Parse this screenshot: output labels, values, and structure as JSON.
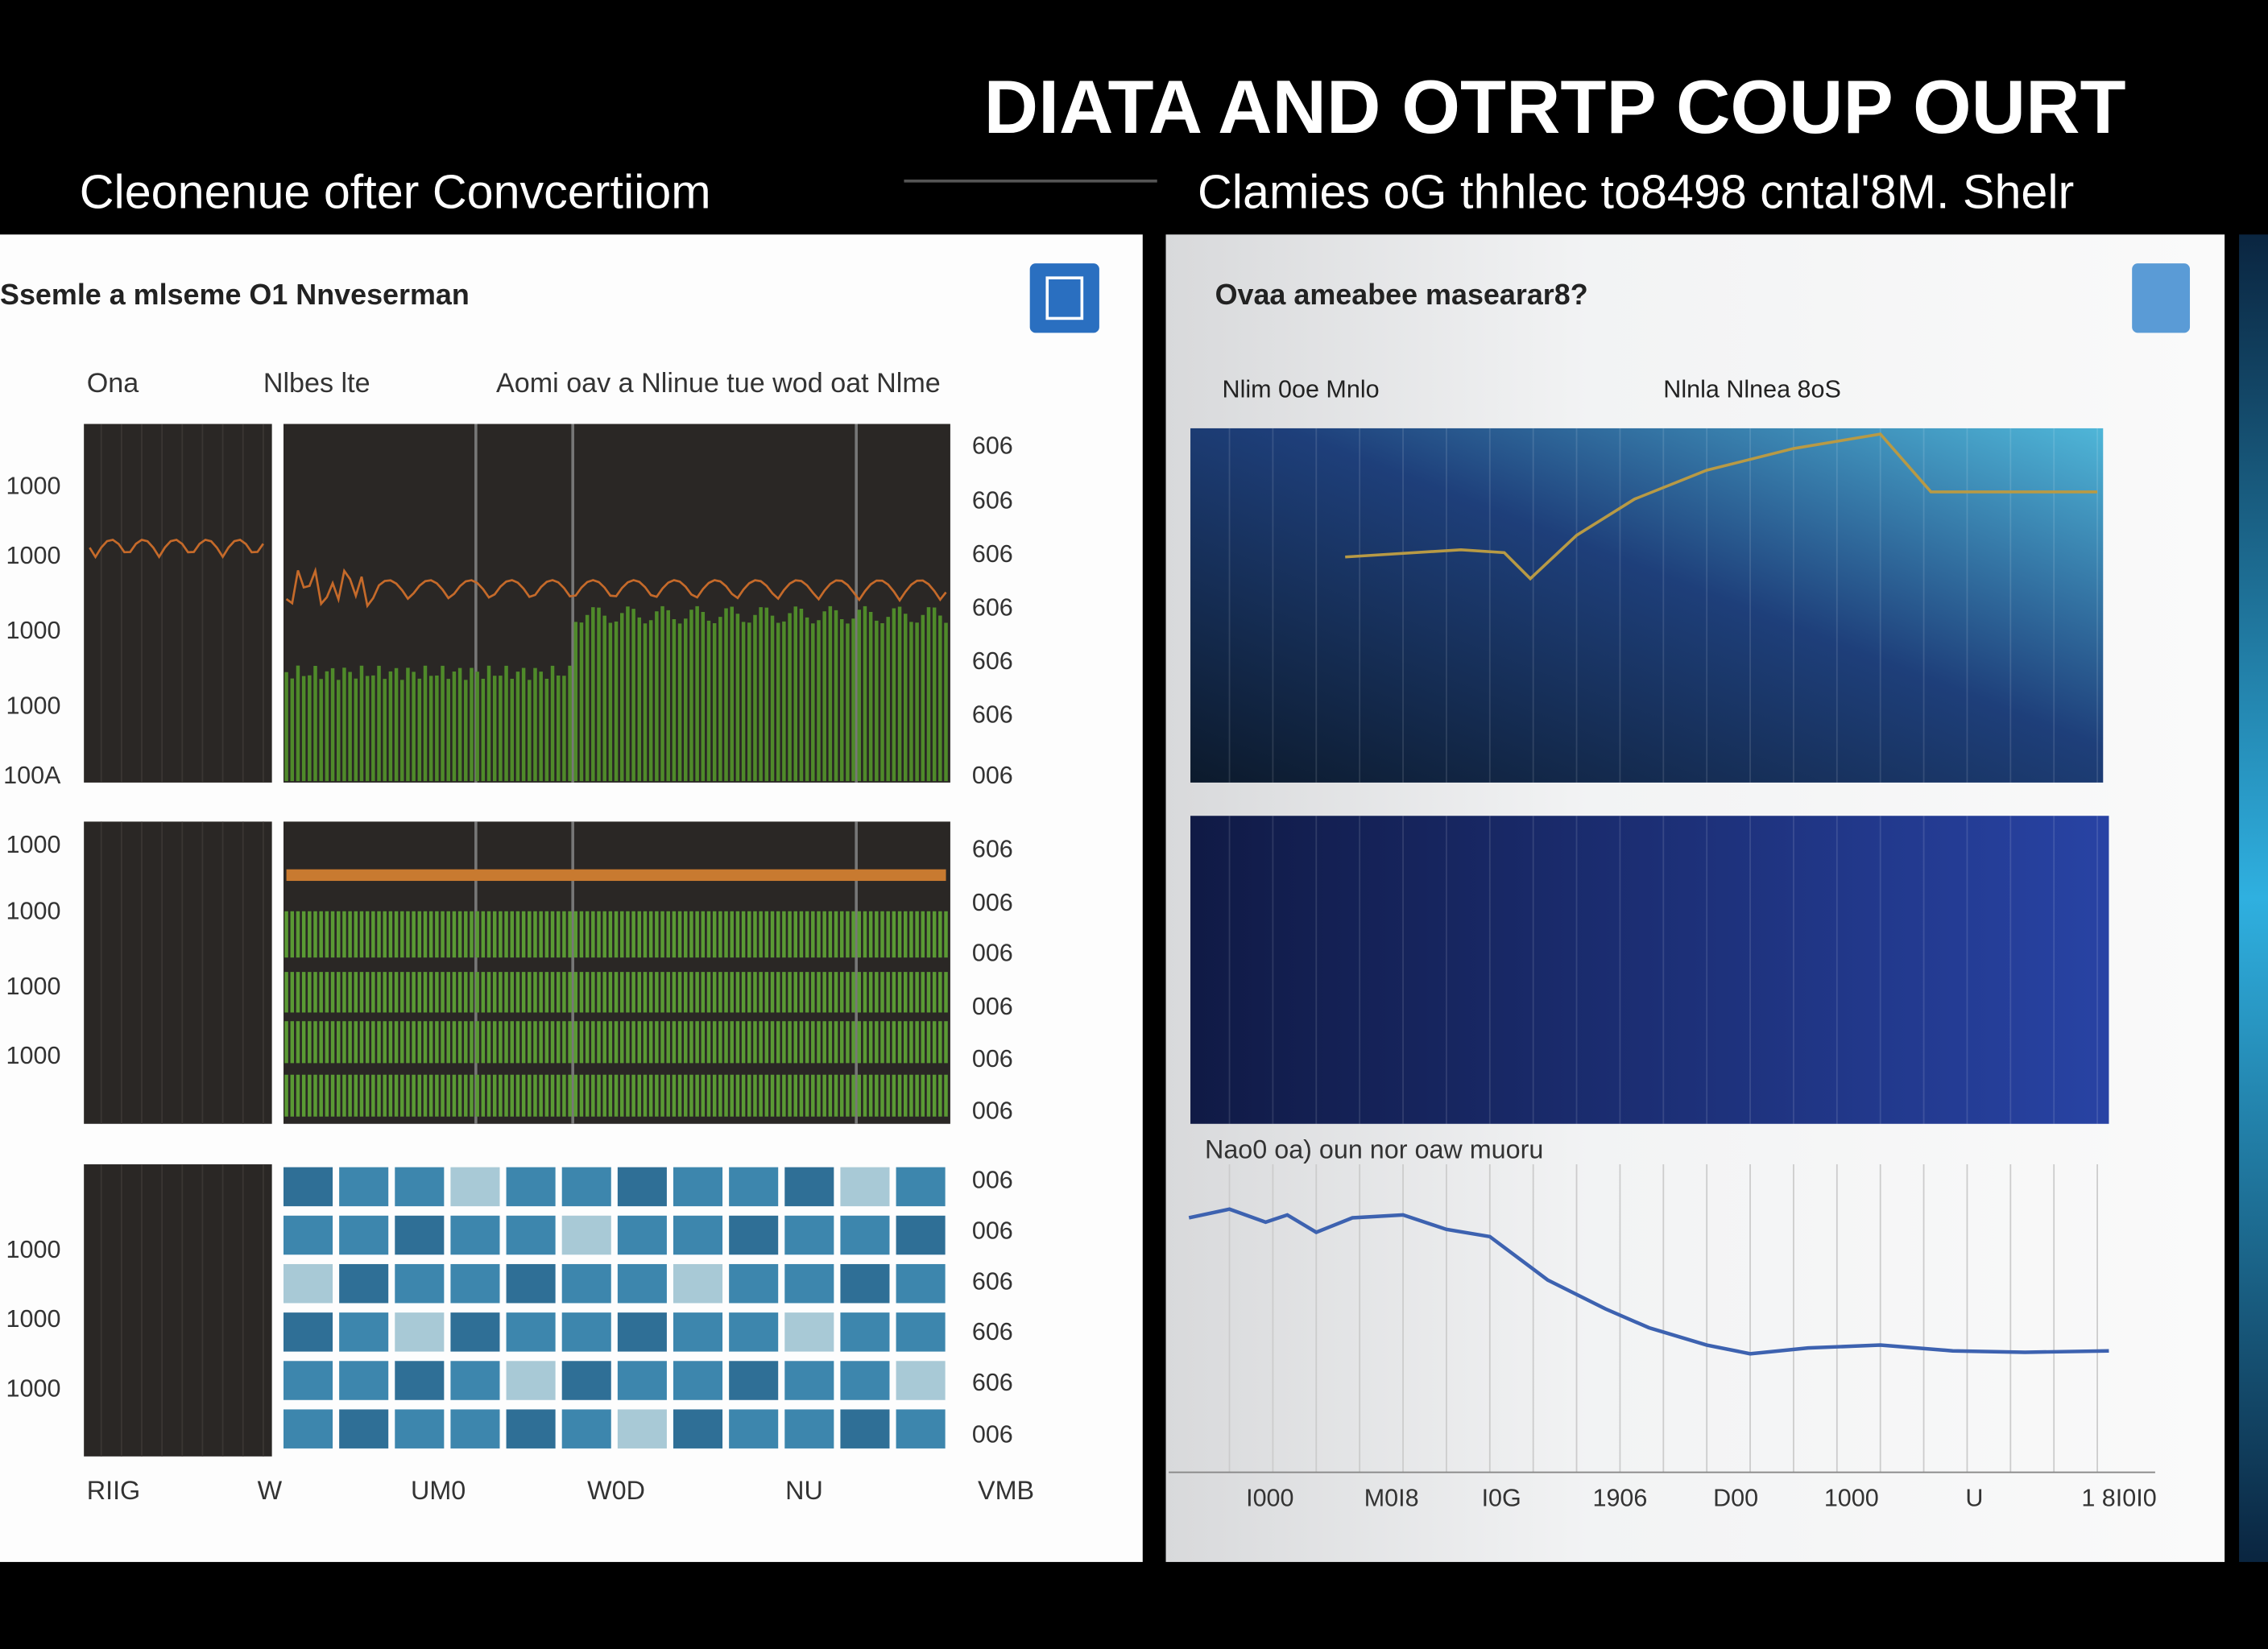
{
  "header": {
    "title": "DIATA  AND OTRTP COUP OURT",
    "subtitle_left": "Cleonenue ofter Convcertiiom",
    "subtitle_right": "Clamies oG thhlec to8498 cntal'8M. Shelr"
  },
  "left_panel": {
    "title": "Ssemle a mlseme O1 Nnveserman",
    "columns": [
      "Ona",
      "Nlbes lte",
      "Aomi oav a Nlinue tue wod oat Nlme"
    ],
    "left_labels": [
      "1000",
      "1000",
      "1000",
      "1000",
      "100A",
      "1000",
      "1000",
      "1000",
      "1000",
      "1000",
      "1000",
      "1000"
    ],
    "right_labels": [
      "606",
      "606",
      "606",
      "606",
      "606",
      "606",
      "006",
      "606",
      "006",
      "006",
      "006",
      "006",
      "006",
      "006",
      "006",
      "606",
      "606",
      "606",
      "006"
    ],
    "bottom_labels": [
      "RIIG",
      "W",
      "UM0",
      "W0D",
      "NU",
      "VMB"
    ]
  },
  "right_panel": {
    "title": "Ovaa ameabee masearar8?",
    "headers": [
      "Nlim 0oe Mnlo",
      "Nlnla Nlnea 8oS"
    ],
    "lower_label": "Nao0 oa) oun nor oaw muoru",
    "bottom_labels": [
      "I000",
      "M0I8",
      "I0G",
      "1906",
      "D00",
      "1000",
      "U",
      "1 8I0I0"
    ]
  }
}
